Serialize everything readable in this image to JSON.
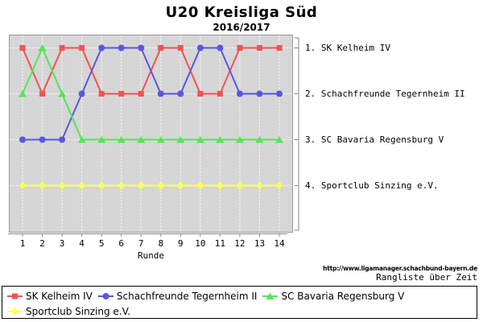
{
  "footer": {
    "url": "http://www.ligamanager.schachbund-bayern.de",
    "caption": "Rangliste über Zeit"
  },
  "chart_data": {
    "type": "line",
    "title": "U20 Kreisliga Süd",
    "subtitle": "2016/2017",
    "xlabel": "Runde",
    "x": [
      1,
      2,
      3,
      4,
      5,
      6,
      7,
      8,
      9,
      10,
      11,
      12,
      13,
      14
    ],
    "ylim": [
      1,
      4
    ],
    "y_inverted": true,
    "grid": true,
    "legend_position": "bottom",
    "plot_bg": "#d6d6d6",
    "plot_border": "#999999",
    "axis_color": "#888888",
    "grid_color": "#ffffff",
    "y_ticks": [
      1,
      2,
      3,
      4
    ],
    "y_tick_labels": [
      "1. SK Kelheim IV",
      "2. Schachfreunde Tegernheim II",
      "3. SC Bavaria Regensburg V",
      "4. Sportclub Sinzing e.V."
    ],
    "series": [
      {
        "name": "SK Kelheim IV",
        "color": "#f25252",
        "marker": "square",
        "values": [
          1,
          2,
          1,
          1,
          2,
          2,
          2,
          1,
          1,
          2,
          2,
          1,
          1,
          1
        ]
      },
      {
        "name": "Schachfreunde Tegernheim II",
        "color": "#5858dd",
        "marker": "circle",
        "values": [
          3,
          3,
          3,
          2,
          1,
          1,
          1,
          2,
          2,
          1,
          1,
          2,
          2,
          2
        ]
      },
      {
        "name": "SC Bavaria Regensburg V",
        "color": "#57e457",
        "marker": "triangle",
        "values": [
          2,
          1,
          2,
          3,
          3,
          3,
          3,
          3,
          3,
          3,
          3,
          3,
          3,
          3
        ]
      },
      {
        "name": "Sportclub Sinzing e.V.",
        "color": "#ffff55",
        "marker": "diamond",
        "values": [
          4,
          4,
          4,
          4,
          4,
          4,
          4,
          4,
          4,
          4,
          4,
          4,
          4,
          4
        ]
      }
    ]
  }
}
